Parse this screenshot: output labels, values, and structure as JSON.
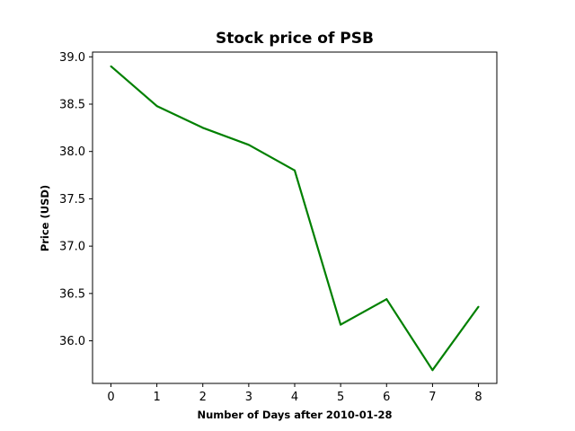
{
  "chart_data": {
    "type": "line",
    "title": "Stock price of PSB",
    "xlabel": "Number of Days after 2010-01-28",
    "ylabel": "Price (USD)",
    "x": [
      0,
      1,
      2,
      3,
      4,
      5,
      6,
      7,
      8
    ],
    "series": [
      {
        "values": [
          38.9,
          38.48,
          38.25,
          38.07,
          37.8,
          36.17,
          36.44,
          35.69,
          36.36
        ],
        "color": "#008000"
      }
    ],
    "xlim": [
      -0.4,
      8.4
    ],
    "ylim": [
      35.55,
      39.05
    ],
    "xticks": [
      "0",
      "1",
      "2",
      "3",
      "4",
      "5",
      "6",
      "7",
      "8"
    ],
    "yticks": [
      "36.0",
      "36.5",
      "37.0",
      "37.5",
      "38.0",
      "38.5",
      "39.0"
    ],
    "grid": false,
    "legend": "none"
  }
}
